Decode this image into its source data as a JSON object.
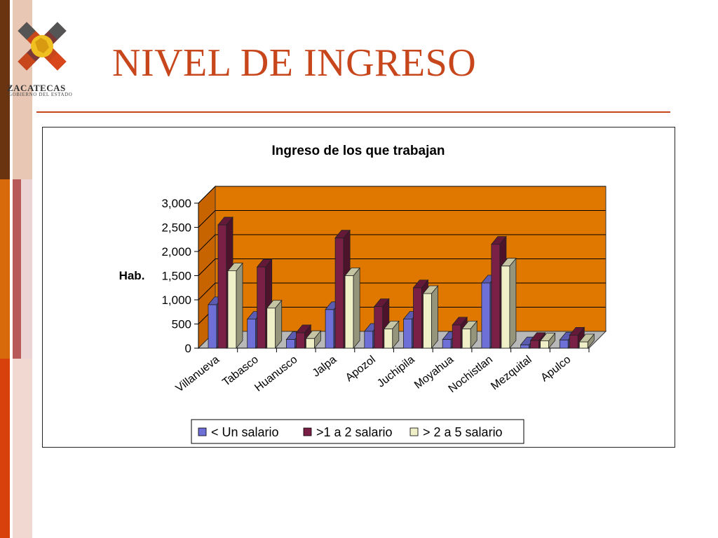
{
  "header": {
    "title": "NIVEL DE INGRESO",
    "logo_text": "ZACATECAS",
    "logo_subtext": "GOBIERNO DEL ESTADO"
  },
  "colors": {
    "accent": "#c8461c",
    "plot_back": "#e07800",
    "series": [
      "#6f6fd8",
      "#7a1f46",
      "#f0f0c8"
    ]
  },
  "chart_data": {
    "type": "bar",
    "title": "Ingreso de los que trabajan",
    "ylabel": "Hab.",
    "xlabel": "",
    "ylim": [
      0,
      3000
    ],
    "yticks": [
      0,
      500,
      1000,
      1500,
      2000,
      2500,
      3000
    ],
    "ytick_labels": [
      "0",
      "500",
      "1,000",
      "1,500",
      "2,000",
      "2,500",
      "3,000"
    ],
    "grid": true,
    "legend_position": "bottom",
    "categories": [
      "Villanueva",
      "Tabasco",
      "Huanusco",
      "Jalpa",
      "Apozol",
      "Juchipila",
      "Moyahua",
      "Nochistlan",
      "Mezquital",
      "Apulco"
    ],
    "series": [
      {
        "name": "< Un salario",
        "values": [
          900,
          600,
          180,
          800,
          350,
          600,
          180,
          1350,
          70,
          170
        ]
      },
      {
        "name": ">1 a 2 salario",
        "values": [
          2550,
          1680,
          320,
          2280,
          860,
          1250,
          480,
          2150,
          160,
          270
        ]
      },
      {
        "name": "> 2 a 5 salario",
        "values": [
          1600,
          830,
          200,
          1500,
          400,
          1130,
          400,
          1700,
          150,
          130
        ]
      }
    ]
  }
}
